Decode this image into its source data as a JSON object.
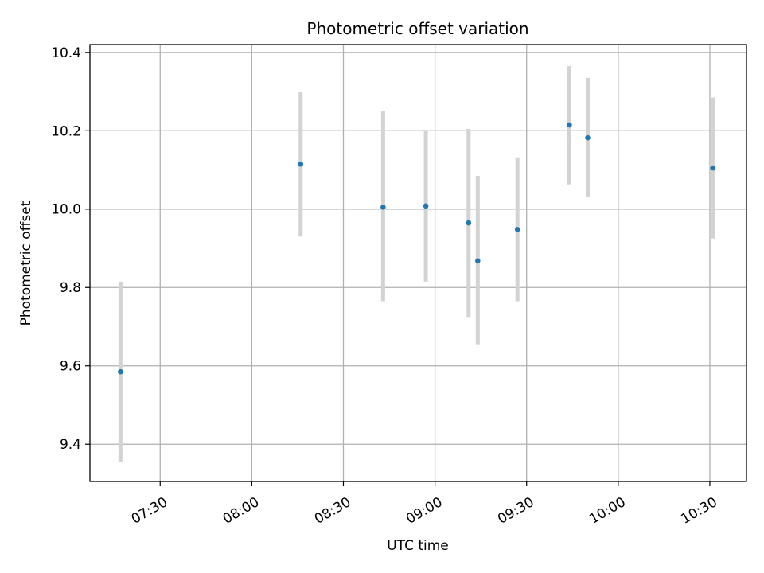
{
  "chart_data": {
    "type": "scatter",
    "title": "Photometric offset variation",
    "xlabel": "UTC time",
    "ylabel": "Photometric offset",
    "xlim": [
      "07:07",
      "10:42"
    ],
    "ylim": [
      9.305,
      10.42
    ],
    "grid": true,
    "x_ticks": [
      "07:30",
      "08:00",
      "08:30",
      "09:00",
      "09:30",
      "10:00",
      "10:30"
    ],
    "y_ticks": [
      9.4,
      9.6,
      9.8,
      10.0,
      10.2,
      10.4
    ],
    "y_tick_labels": [
      "9.4",
      "9.6",
      "9.8",
      "10.0",
      "10.2",
      "10.4"
    ],
    "colors": {
      "point": "#1f77b4",
      "errorbar": "#d3d3d3",
      "grid": "#b0b0b0"
    },
    "points": [
      {
        "x": "07:17",
        "y": 9.585,
        "y_low": 9.355,
        "y_high": 9.815
      },
      {
        "x": "08:16",
        "y": 10.115,
        "y_low": 9.93,
        "y_high": 10.3
      },
      {
        "x": "08:43",
        "y": 10.005,
        "y_low": 9.765,
        "y_high": 10.25
      },
      {
        "x": "08:57",
        "y": 10.008,
        "y_low": 9.815,
        "y_high": 10.2
      },
      {
        "x": "09:11",
        "y": 9.965,
        "y_low": 9.725,
        "y_high": 10.205
      },
      {
        "x": "09:14",
        "y": 9.868,
        "y_low": 9.655,
        "y_high": 10.085
      },
      {
        "x": "09:27",
        "y": 9.948,
        "y_low": 9.765,
        "y_high": 10.132
      },
      {
        "x": "09:44",
        "y": 10.215,
        "y_low": 10.063,
        "y_high": 10.365
      },
      {
        "x": "09:50",
        "y": 10.182,
        "y_low": 10.03,
        "y_high": 10.335
      },
      {
        "x": "10:31",
        "y": 10.105,
        "y_low": 9.925,
        "y_high": 10.285
      }
    ]
  }
}
